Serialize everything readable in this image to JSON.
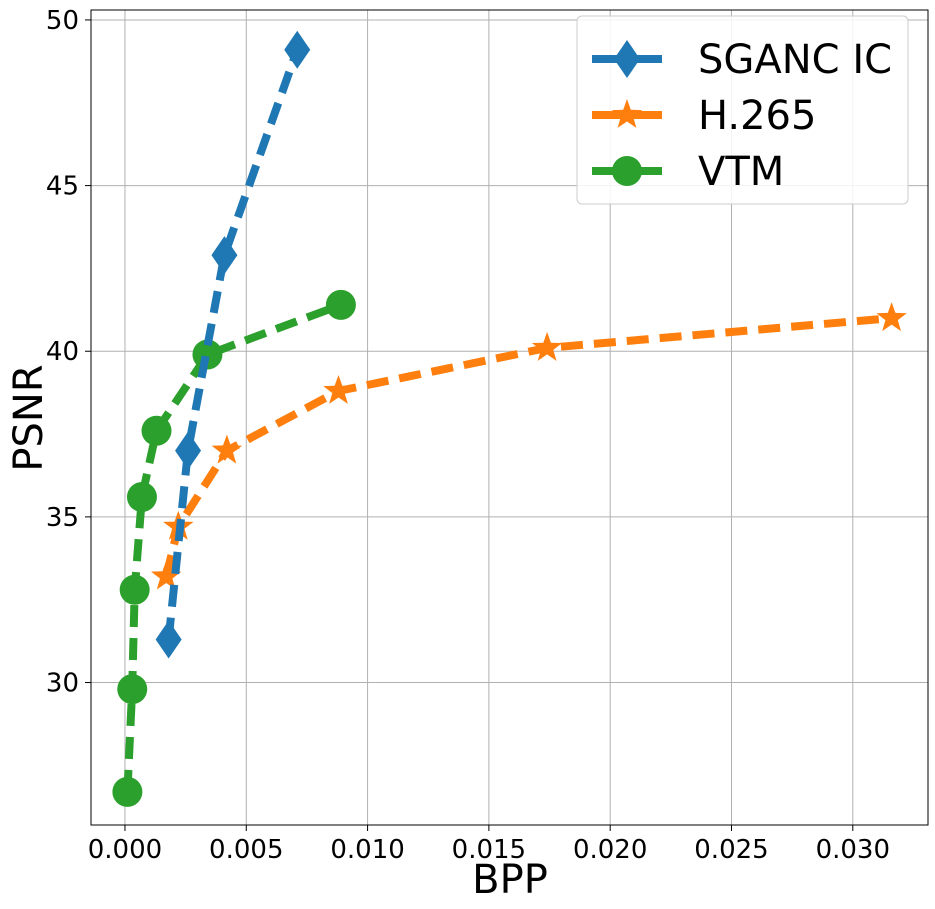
{
  "chart_data": {
    "type": "line",
    "title": "",
    "xlabel": "BPP",
    "ylabel": "PSNR",
    "xlim": [
      -0.0014,
      0.0331
    ],
    "ylim": [
      25.7,
      50.3
    ],
    "xticks": [
      0.0,
      0.005,
      0.01,
      0.015,
      0.02,
      0.025,
      0.03
    ],
    "xtick_labels": [
      "0.000",
      "0.005",
      "0.010",
      "0.015",
      "0.020",
      "0.025",
      "0.030"
    ],
    "yticks": [
      30,
      35,
      40,
      45,
      50
    ],
    "ytick_labels": [
      "30",
      "35",
      "40",
      "45",
      "50"
    ],
    "grid": true,
    "legend_position": "top-right",
    "series": [
      {
        "name": "SGANC IC",
        "color": "#1f77b4",
        "marker": "diamond",
        "line_style": "dashed",
        "x": [
          0.0018,
          0.0026,
          0.0041,
          0.0071
        ],
        "y": [
          31.3,
          37.0,
          42.9,
          49.1
        ]
      },
      {
        "name": "H.265",
        "color": "#ff7f0e",
        "marker": "star",
        "line_style": "dashed",
        "x": [
          0.0017,
          0.0022,
          0.0042,
          0.0088,
          0.0174,
          0.0316
        ],
        "y": [
          33.2,
          34.7,
          37.0,
          38.8,
          40.1,
          41.0
        ]
      },
      {
        "name": "VTM",
        "color": "#2ca02c",
        "marker": "circle",
        "line_style": "dashed",
        "x": [
          0.0001,
          0.0003,
          0.0004,
          0.0007,
          0.0013,
          0.0034,
          0.0089
        ],
        "y": [
          26.7,
          29.8,
          32.8,
          35.6,
          37.6,
          39.9,
          41.4
        ]
      }
    ]
  }
}
